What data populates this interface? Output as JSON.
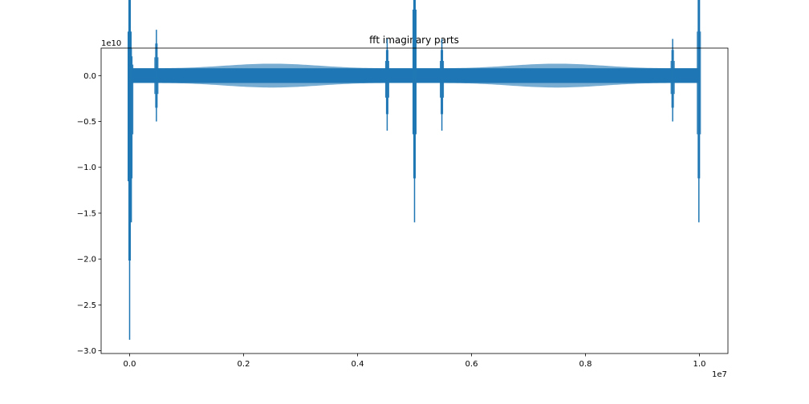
{
  "chart_data": {
    "type": "line",
    "title": "fft imaginary parts",
    "xlabel": "",
    "ylabel": "",
    "x_offset_text": "1e7",
    "y_offset_text": "1e10",
    "xlim": [
      -0.05,
      1.05
    ],
    "ylim": [
      -3.03,
      0.3
    ],
    "x_ticks": [
      0.0,
      0.2,
      0.4,
      0.6,
      0.8,
      1.0
    ],
    "x_tick_labels": [
      "0.0",
      "0.2",
      "0.4",
      "0.6",
      "0.8",
      "1.0"
    ],
    "y_ticks": [
      0.0,
      -0.5,
      -1.0,
      -1.5,
      -2.0,
      -2.5,
      -3.0
    ],
    "y_tick_labels": [
      "0.0",
      "−0.5",
      "−1.0",
      "−1.5",
      "−2.0",
      "−2.5",
      "−3.0"
    ],
    "grid": false,
    "series_color": "#1f77b4",
    "series": [
      {
        "x": [
          0.0,
          0.0,
          0.0,
          0.002,
          0.004,
          0.006,
          0.05,
          0.1,
          0.2,
          0.3,
          0.4,
          0.45,
          0.5,
          0.55,
          0.6,
          0.7,
          0.8,
          0.9,
          0.95,
          0.998,
          1.0
        ],
        "y": [
          1.2,
          -2.88,
          -1.6,
          0.3,
          -0.25,
          0.15,
          0.1,
          -0.1,
          0.05,
          -0.05,
          0.05,
          0.1,
          1.8,
          0.2,
          -0.05,
          0.05,
          -0.05,
          0.05,
          0.1,
          -1.6,
          1.2
        ]
      }
    ],
    "band_regions": [
      {
        "x_start": 0.0,
        "x_end": 1.0,
        "amplitude": 0.08
      }
    ],
    "spikes": [
      {
        "x": 0.0,
        "y_max": 1.2,
        "y_min": -2.88
      },
      {
        "x": 0.003,
        "y_max": 0.3,
        "y_min": -1.6
      },
      {
        "x": 0.047,
        "y_max": 0.5,
        "y_min": -0.5
      },
      {
        "x": 0.452,
        "y_max": 0.4,
        "y_min": -0.6
      },
      {
        "x": 0.5,
        "y_max": 1.8,
        "y_min": -1.6
      },
      {
        "x": 0.548,
        "y_max": 0.4,
        "y_min": -0.6
      },
      {
        "x": 0.953,
        "y_max": 0.4,
        "y_min": -0.5
      },
      {
        "x": 0.999,
        "y_max": 1.2,
        "y_min": -1.6
      }
    ]
  }
}
